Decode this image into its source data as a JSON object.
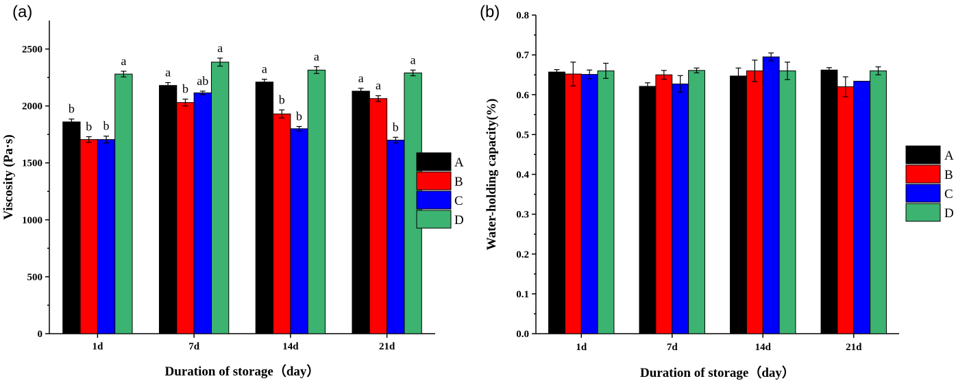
{
  "chart_data": [
    {
      "panel_label": "(a)",
      "type": "bar",
      "categories": [
        "1d",
        "7d",
        "14d",
        "21d"
      ],
      "series": [
        {
          "name": "A",
          "color": "#000000",
          "values": [
            1860,
            2180,
            2210,
            2130
          ],
          "errors": [
            25,
            25,
            25,
            25
          ],
          "sig": [
            "b",
            "a",
            "a",
            "a"
          ]
        },
        {
          "name": "B",
          "color": "#ff0000",
          "values": [
            1705,
            2030,
            1930,
            2065
          ],
          "errors": [
            25,
            30,
            35,
            25
          ],
          "sig": [
            "b",
            "b",
            "b",
            "a"
          ]
        },
        {
          "name": "C",
          "color": "#0000ff",
          "values": [
            1705,
            2115,
            1800,
            1700
          ],
          "errors": [
            30,
            15,
            20,
            25
          ],
          "sig": [
            "b",
            "ab",
            "b",
            "b"
          ]
        },
        {
          "name": "D",
          "color": "#3cb371",
          "values": [
            2280,
            2385,
            2315,
            2290
          ],
          "errors": [
            25,
            35,
            30,
            25
          ],
          "sig": [
            "a",
            "a",
            "a",
            "a"
          ]
        }
      ],
      "xlabel": "Duration of storage（day）",
      "ylabel": "Viscosity (Pa·s)",
      "ylim": [
        0,
        2750
      ],
      "yticks": [
        "0",
        "500",
        "1000",
        "1500",
        "2000",
        "2500"
      ],
      "ytick_values": [
        0,
        500,
        1000,
        1500,
        2000,
        2500
      ],
      "legend": "right",
      "grid": false
    },
    {
      "panel_label": "(b)",
      "type": "bar",
      "categories": [
        "1d",
        "7d",
        "14d",
        "21d"
      ],
      "series": [
        {
          "name": "A",
          "color": "#000000",
          "values": [
            0.657,
            0.621,
            0.647,
            0.662
          ],
          "errors": [
            0.006,
            0.009,
            0.02,
            0.006
          ],
          "sig": [
            "",
            "",
            "",
            ""
          ]
        },
        {
          "name": "B",
          "color": "#ff0000",
          "values": [
            0.652,
            0.65,
            0.66,
            0.62
          ],
          "errors": [
            0.03,
            0.011,
            0.027,
            0.025
          ],
          "sig": [
            "",
            "",
            "",
            ""
          ]
        },
        {
          "name": "C",
          "color": "#0000ff",
          "values": [
            0.651,
            0.627,
            0.695,
            0.634
          ],
          "errors": [
            0.011,
            0.021,
            0.01,
            0.0
          ],
          "sig": [
            "",
            "",
            "",
            ""
          ]
        },
        {
          "name": "D",
          "color": "#3cb371",
          "values": [
            0.66,
            0.661,
            0.66,
            0.66
          ],
          "errors": [
            0.019,
            0.006,
            0.022,
            0.01
          ],
          "sig": [
            "",
            "",
            "",
            ""
          ]
        }
      ],
      "xlabel": "Duration of storage（day）",
      "ylabel": "Water-holding capacity(%)",
      "ylim": [
        0,
        0.8
      ],
      "yticks": [
        "0.0",
        "0.1",
        "0.2",
        "0.3",
        "0.4",
        "0.5",
        "0.6",
        "0.7",
        "0.8"
      ],
      "ytick_values": [
        0,
        0.1,
        0.2,
        0.3,
        0.4,
        0.5,
        0.6,
        0.7,
        0.8
      ],
      "legend": "right",
      "grid": false
    }
  ]
}
